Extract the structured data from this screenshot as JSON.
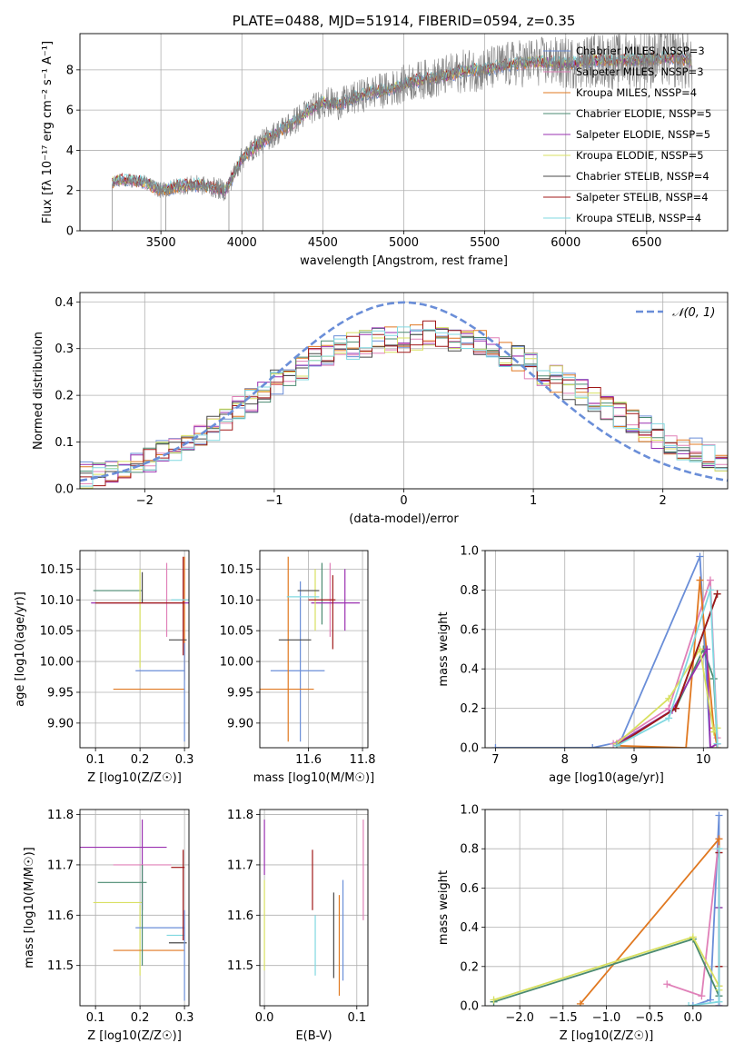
{
  "colors": {
    "chabrier_miles": "#6a8ed8",
    "salpeter_miles": "#e080b8",
    "kroupa_miles": "#e07820",
    "chabrier_elodie": "#4a8a70",
    "salpeter_elodie": "#9a30b0",
    "kroupa_elodie": "#d8e060",
    "chabrier_stelib": "#484848",
    "salpeter_stelib": "#a01818",
    "kroupa_stelib": "#80d8e0",
    "gaussian": "#6a8ed8"
  },
  "chart_data": [
    {
      "id": "spectrum",
      "type": "line",
      "title": "PLATE=0488, MJD=51914, FIBERID=0594, z=0.35",
      "xlabel": "wavelength [Angstrom, rest frame]",
      "ylabel": "Flux [fλ 10⁻¹⁷ erg cm⁻² s⁻¹ A⁻¹]",
      "xlim": [
        3000,
        7000
      ],
      "ylim": [
        0,
        9.8
      ],
      "xticks": [
        3500,
        4000,
        4500,
        5000,
        5500,
        6000,
        6500
      ],
      "yticks": [
        0,
        2,
        4,
        6,
        8
      ],
      "legend_position": "top-right",
      "legend": [
        "Chabrier MILES, NSSP=3",
        "Salpeter MILES, NSSP=3",
        "Kroupa MILES, NSSP=4",
        "Chabrier ELODIE, NSSP=5",
        "Salpeter ELODIE, NSSP=5",
        "Kroupa ELODIE, NSSP=5",
        "Chabrier STELIB, NSSP=4",
        "Salpeter STELIB, NSSP=4",
        "Kroupa STELIB, NSSP=4"
      ],
      "continuum": {
        "x": [
          3200,
          3230,
          3300,
          3400,
          3500,
          3600,
          3700,
          3800,
          3900,
          3950,
          4000,
          4100,
          4200,
          4300,
          4400,
          4500,
          4600,
          4700,
          4800,
          4900,
          5000,
          5100,
          5200,
          5300,
          5400,
          5500,
          5600,
          5700,
          5800,
          5900,
          6000,
          6100,
          6200,
          6300,
          6400,
          6500,
          6600,
          6700,
          6780
        ],
        "y": [
          2.4,
          2.5,
          2.5,
          2.4,
          2.0,
          2.2,
          2.3,
          2.2,
          2.0,
          2.8,
          3.6,
          4.3,
          4.8,
          5.3,
          5.9,
          6.4,
          6.3,
          6.6,
          6.9,
          7.0,
          7.3,
          7.5,
          7.6,
          7.8,
          8.0,
          8.0,
          8.2,
          8.3,
          8.4,
          8.4,
          8.3,
          8.4,
          8.5,
          8.4,
          8.5,
          8.5,
          8.6,
          8.6,
          8.4
        ]
      }
    },
    {
      "id": "residuals",
      "type": "line",
      "xlabel": "(data-model)/error",
      "ylabel": "Normed distribution",
      "xlim": [
        -2.5,
        2.5
      ],
      "ylim": [
        0,
        0.42
      ],
      "xticks": [
        -2,
        -1,
        0,
        1,
        2
      ],
      "yticks": [
        0.0,
        0.1,
        0.2,
        0.3,
        0.4
      ],
      "legend_position": "top-right",
      "legend": [
        "𝒩(0, 1)"
      ],
      "hist_base": [
        0.03,
        0.035,
        0.04,
        0.045,
        0.05,
        0.06,
        0.075,
        0.09,
        0.1,
        0.115,
        0.13,
        0.15,
        0.17,
        0.19,
        0.21,
        0.23,
        0.245,
        0.26,
        0.275,
        0.29,
        0.3,
        0.305,
        0.31,
        0.315,
        0.32,
        0.32,
        0.325,
        0.33,
        0.33,
        0.325,
        0.32,
        0.31,
        0.3,
        0.29,
        0.28,
        0.265,
        0.25,
        0.235,
        0.22,
        0.205,
        0.19,
        0.175,
        0.16,
        0.145,
        0.13,
        0.115,
        0.1,
        0.09,
        0.08,
        0.07,
        0.06
      ]
    },
    {
      "id": "z-age",
      "type": "scatter",
      "xlabel": "Z [log10(Z/Z☉)]",
      "ylabel": "age  [log10(age/yr)]",
      "xlim": [
        0.065,
        0.31
      ],
      "ylim": [
        9.86,
        10.18
      ],
      "xticks": [
        0.1,
        0.2,
        0.3
      ],
      "yticks": [
        9.9,
        9.95,
        10.0,
        10.05,
        10.1,
        10.15
      ],
      "points": [
        {
          "c": "chabrier_miles",
          "x": 0.245,
          "xe": 0.055,
          "y": 9.985,
          "ye": 0.0
        },
        {
          "c": "salpeter_miles",
          "x": 0.26,
          "xe": 0.0,
          "y": 10.1,
          "ye": 0.06
        },
        {
          "c": "kroupa_miles",
          "x": 0.22,
          "xe": 0.08,
          "y": 9.955,
          "ye": 0.0
        },
        {
          "c": "kroupa_miles",
          "x": 0.3,
          "xe": 0.0,
          "y": 10.07,
          "ye": 0.1
        },
        {
          "c": "chabrier_elodie",
          "x": 0.15,
          "xe": 0.055,
          "y": 10.115,
          "ye": 0.0
        },
        {
          "c": "salpeter_elodie",
          "x": 0.2,
          "xe": 0.11,
          "y": 10.095,
          "ye": 0.0
        },
        {
          "c": "kroupa_elodie",
          "x": 0.2,
          "xe": 0.0,
          "y": 10.07,
          "ye": 0.08
        },
        {
          "c": "chabrier_stelib",
          "x": 0.205,
          "xe": 0.0,
          "y": 10.12,
          "ye": 0.025
        },
        {
          "c": "chabrier_stelib",
          "x": 0.285,
          "xe": 0.02,
          "y": 10.035,
          "ye": 0.0
        },
        {
          "c": "salpeter_stelib",
          "x": 0.2,
          "xe": 0.1,
          "y": 10.095,
          "ye": 0.0
        },
        {
          "c": "salpeter_stelib",
          "x": 0.297,
          "xe": 0.0,
          "y": 10.09,
          "ye": 0.08
        },
        {
          "c": "kroupa_stelib",
          "x": 0.29,
          "xe": 0.02,
          "y": 10.1,
          "ye": 0.0
        },
        {
          "c": "chabrier_miles",
          "x": 0.3,
          "xe": 0.0,
          "y": 9.95,
          "ye": 0.08
        }
      ]
    },
    {
      "id": "mass-age",
      "type": "scatter",
      "xlabel": "mass [log10(M/M☉)]",
      "ylabel": "",
      "xlim": [
        11.42,
        11.82
      ],
      "ylim": [
        9.86,
        10.18
      ],
      "xticks": [
        11.6,
        11.8
      ],
      "yticks": [
        9.9,
        9.95,
        10.0,
        10.05,
        10.1,
        10.15
      ],
      "points": [
        {
          "c": "chabrier_miles",
          "x": 11.56,
          "xe": 0.1,
          "y": 9.985,
          "ye": 0.0
        },
        {
          "c": "chabrier_miles",
          "x": 11.57,
          "xe": 0.0,
          "y": 10.0,
          "ye": 0.13
        },
        {
          "c": "kroupa_miles",
          "x": 11.52,
          "xe": 0.1,
          "y": 9.955,
          "ye": 0.0
        },
        {
          "c": "kroupa_miles",
          "x": 11.525,
          "xe": 0.0,
          "y": 10.02,
          "ye": 0.15
        },
        {
          "c": "salpeter_miles",
          "x": 11.68,
          "xe": 0.0,
          "y": 10.1,
          "ye": 0.06
        },
        {
          "c": "chabrier_elodie",
          "x": 11.65,
          "xe": 0.0,
          "y": 10.11,
          "ye": 0.05
        },
        {
          "c": "salpeter_elodie",
          "x": 11.7,
          "xe": 0.09,
          "y": 10.095,
          "ye": 0.0
        },
        {
          "c": "salpeter_elodie",
          "x": 11.735,
          "xe": 0.0,
          "y": 10.1,
          "ye": 0.05
        },
        {
          "c": "kroupa_elodie",
          "x": 11.625,
          "xe": 0.0,
          "y": 10.1,
          "ye": 0.05
        },
        {
          "c": "chabrier_stelib",
          "x": 11.55,
          "xe": 0.06,
          "y": 10.035,
          "ye": 0.0
        },
        {
          "c": "chabrier_stelib",
          "x": 11.6,
          "xe": 0.04,
          "y": 10.115,
          "ye": 0.0
        },
        {
          "c": "salpeter_stelib",
          "x": 11.69,
          "xe": 0.0,
          "y": 10.08,
          "ye": 0.06
        },
        {
          "c": "salpeter_stelib",
          "x": 11.65,
          "xe": 0.05,
          "y": 10.1,
          "ye": 0.0
        },
        {
          "c": "kroupa_stelib",
          "x": 11.58,
          "xe": 0.06,
          "y": 10.105,
          "ye": 0.0
        }
      ]
    },
    {
      "id": "age-weight",
      "type": "line",
      "xlabel": "age  [log10(age/yr)]",
      "ylabel": "mass weight",
      "xlim": [
        6.85,
        10.35
      ],
      "ylim": [
        0,
        1.0
      ],
      "xticks": [
        7,
        8,
        9,
        10
      ],
      "yticks": [
        0.0,
        0.2,
        0.4,
        0.6,
        0.8,
        1.0
      ],
      "series": [
        {
          "c": "chabrier_miles",
          "x": [
            7.0,
            8.4,
            8.8,
            9.95,
            10.1
          ],
          "y": [
            0.0,
            0.0,
            0.03,
            0.97,
            0.0
          ]
        },
        {
          "c": "salpeter_miles",
          "x": [
            8.7,
            9.5,
            10.1,
            10.2
          ],
          "y": [
            0.02,
            0.2,
            0.85,
            0.05
          ]
        },
        {
          "c": "kroupa_miles",
          "x": [
            8.75,
            9.75,
            9.95,
            10.15,
            10.2
          ],
          "y": [
            0.01,
            0.0,
            0.85,
            0.1,
            0.0
          ]
        },
        {
          "c": "chabrier_elodie",
          "x": [
            8.75,
            9.6,
            10.0,
            10.15,
            10.2
          ],
          "y": [
            0.02,
            0.2,
            0.5,
            0.35,
            0.02
          ]
        },
        {
          "c": "salpeter_elodie",
          "x": [
            8.75,
            9.55,
            10.05,
            10.1,
            10.2
          ],
          "y": [
            0.02,
            0.19,
            0.5,
            0.0,
            0.02
          ]
        },
        {
          "c": "kroupa_elodie",
          "x": [
            8.75,
            9.5,
            9.95,
            10.15,
            10.2
          ],
          "y": [
            0.02,
            0.25,
            0.5,
            0.08,
            0.1
          ]
        },
        {
          "c": "chabrier_stelib",
          "x": [
            8.75,
            9.6,
            10.2
          ],
          "y": [
            0.01,
            0.2,
            0.78
          ]
        },
        {
          "c": "salpeter_stelib",
          "x": [
            8.75,
            9.6,
            10.2
          ],
          "y": [
            0.01,
            0.2,
            0.78
          ]
        },
        {
          "c": "kroupa_stelib",
          "x": [
            8.75,
            9.5,
            10.1,
            10.2
          ],
          "y": [
            0.01,
            0.15,
            0.8,
            0.02
          ]
        }
      ]
    },
    {
      "id": "z-mass",
      "type": "scatter",
      "xlabel": "Z [log10(Z/Z☉)]",
      "ylabel": "mass [log10(M/M☉)]",
      "xlim": [
        0.065,
        0.31
      ],
      "ylim": [
        11.42,
        11.81
      ],
      "xticks": [
        0.1,
        0.2,
        0.3
      ],
      "yticks": [
        11.5,
        11.6,
        11.7,
        11.8
      ],
      "points": [
        {
          "c": "salpeter_elodie",
          "x": 0.16,
          "xe": 0.1,
          "y": 11.735,
          "ye": 0.0
        },
        {
          "c": "salpeter_elodie",
          "x": 0.205,
          "xe": 0.0,
          "y": 11.7,
          "ye": 0.09
        },
        {
          "c": "salpeter_miles",
          "x": 0.205,
          "xe": 0.065,
          "y": 11.7,
          "ye": 0.0
        },
        {
          "c": "chabrier_elodie",
          "x": 0.16,
          "xe": 0.055,
          "y": 11.665,
          "ye": 0.0
        },
        {
          "c": "kroupa_elodie",
          "x": 0.15,
          "xe": 0.055,
          "y": 11.625,
          "ye": 0.0
        },
        {
          "c": "kroupa_elodie",
          "x": 0.2,
          "xe": 0.0,
          "y": 11.55,
          "ye": 0.07
        },
        {
          "c": "chabrier_miles",
          "x": 0.245,
          "xe": 0.055,
          "y": 11.575,
          "ye": 0.0
        },
        {
          "c": "kroupa_miles",
          "x": 0.22,
          "xe": 0.08,
          "y": 11.53,
          "ye": 0.0
        },
        {
          "c": "kroupa_stelib",
          "x": 0.28,
          "xe": 0.02,
          "y": 11.56,
          "ye": 0.0
        },
        {
          "c": "chabrier_stelib",
          "x": 0.285,
          "xe": 0.02,
          "y": 11.545,
          "ye": 0.0
        },
        {
          "c": "salpeter_stelib",
          "x": 0.297,
          "xe": 0.0,
          "y": 11.64,
          "ye": 0.09
        },
        {
          "c": "salpeter_stelib",
          "x": 0.285,
          "xe": 0.015,
          "y": 11.695,
          "ye": 0.0
        },
        {
          "c": "chabrier_miles",
          "x": 0.3,
          "xe": 0.0,
          "y": 11.52,
          "ye": 0.09
        },
        {
          "c": "chabrier_elodie",
          "x": 0.205,
          "xe": 0.0,
          "y": 11.6,
          "ye": 0.1
        }
      ]
    },
    {
      "id": "ebv-mass",
      "type": "scatter",
      "xlabel": "E(B-V)",
      "ylabel": "",
      "xlim": [
        -0.005,
        0.112
      ],
      "ylim": [
        11.42,
        11.81
      ],
      "xticks": [
        0.0,
        0.1
      ],
      "yticks": [
        11.5,
        11.6,
        11.7,
        11.8
      ],
      "points": [
        {
          "c": "salpeter_elodie",
          "x": 0.0,
          "xe": 0.0,
          "y": 11.735,
          "ye": 0.055
        },
        {
          "c": "kroupa_elodie",
          "x": 0.0,
          "xe": 0.0,
          "y": 11.58,
          "ye": 0.09
        },
        {
          "c": "salpeter_stelib",
          "x": 0.052,
          "xe": 0.0,
          "y": 11.67,
          "ye": 0.06
        },
        {
          "c": "kroupa_stelib",
          "x": 0.055,
          "xe": 0.0,
          "y": 11.54,
          "ye": 0.06
        },
        {
          "c": "chabrier_stelib",
          "x": 0.075,
          "xe": 0.0,
          "y": 11.56,
          "ye": 0.085
        },
        {
          "c": "kroupa_miles",
          "x": 0.081,
          "xe": 0.0,
          "y": 11.54,
          "ye": 0.1
        },
        {
          "c": "chabrier_miles",
          "x": 0.085,
          "xe": 0.0,
          "y": 11.57,
          "ye": 0.1
        },
        {
          "c": "salpeter_miles",
          "x": 0.107,
          "xe": 0.0,
          "y": 11.69,
          "ye": 0.1
        }
      ]
    },
    {
      "id": "z-weight",
      "type": "line",
      "xlabel": "Z [log10(Z/Z☉)]",
      "ylabel": "mass weight",
      "xlim": [
        -2.4,
        0.4
      ],
      "ylim": [
        0,
        1.0
      ],
      "xticks": [
        -2.0,
        -1.5,
        -1.0,
        -0.5,
        0.0
      ],
      "yticks": [
        0.0,
        0.2,
        0.4,
        0.6,
        0.8,
        1.0
      ],
      "series": [
        {
          "c": "chabrier_miles",
          "x": [
            0.0,
            0.2,
            0.3,
            0.3
          ],
          "y": [
            0.0,
            0.03,
            0.97,
            0.0
          ]
        },
        {
          "c": "salpeter_miles",
          "x": [
            -0.3,
            0.1,
            0.3
          ],
          "y": [
            0.11,
            0.05,
            0.85
          ]
        },
        {
          "c": "kroupa_miles",
          "x": [
            -1.3,
            0.3,
            0.3
          ],
          "y": [
            0.01,
            0.85,
            0.1
          ]
        },
        {
          "c": "chabrier_elodie",
          "x": [
            -2.3,
            0.0,
            0.3,
            0.3
          ],
          "y": [
            0.02,
            0.34,
            0.05,
            0.5
          ]
        },
        {
          "c": "salpeter_elodie",
          "x": [
            0.3,
            0.3
          ],
          "y": [
            0.0,
            0.5
          ]
        },
        {
          "c": "kroupa_elodie",
          "x": [
            -2.3,
            0.0,
            0.3,
            0.3
          ],
          "y": [
            0.03,
            0.35,
            0.1,
            0.08
          ]
        },
        {
          "c": "chabrier_stelib",
          "x": [
            0.3,
            0.3
          ],
          "y": [
            0.2,
            0.78
          ]
        },
        {
          "c": "salpeter_stelib",
          "x": [
            0.3,
            0.3
          ],
          "y": [
            0.2,
            0.78
          ]
        },
        {
          "c": "kroupa_stelib",
          "x": [
            -0.05,
            0.3,
            0.3
          ],
          "y": [
            0.0,
            0.02,
            0.8
          ]
        }
      ]
    }
  ]
}
